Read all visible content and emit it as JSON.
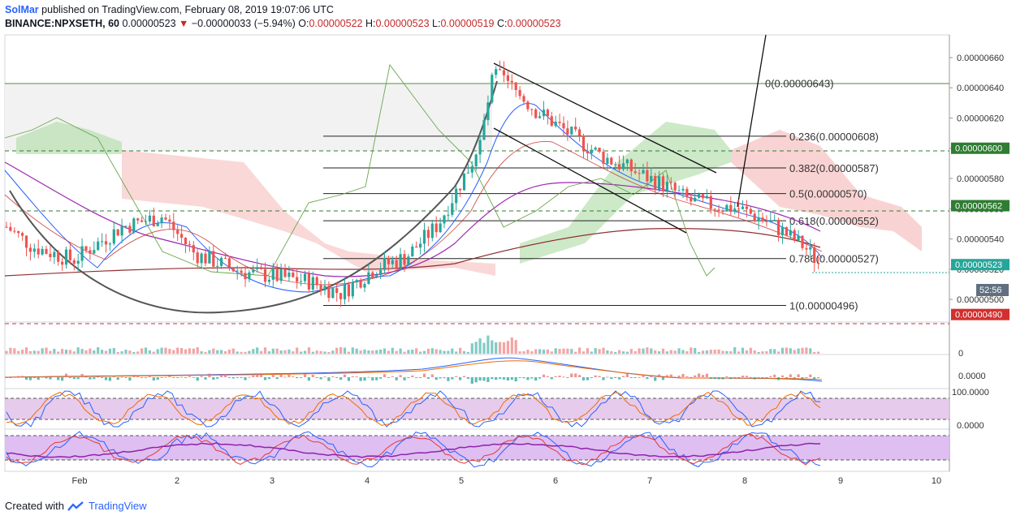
{
  "header": {
    "author": "SolMar",
    "published": "published on TradingView.com, February 08, 2019 19:07:06 UTC",
    "symbol": "BINANCE:NPXSETH, 60",
    "last": "0.00000523",
    "change_arrow": "▼",
    "change": "−0.00000033 (−5.94%)",
    "o_label": "O:",
    "o": "0.00000522",
    "h_label": "H:",
    "h": "0.00000523",
    "l_label": "L:",
    "l": "0.00000519",
    "c_label": "C:",
    "c": "0.00000523"
  },
  "footer": {
    "created_with": "Created with",
    "brand": "TradingView"
  },
  "colors": {
    "up": "#26a69a",
    "down": "#ef5350",
    "cloud_green": "#b8e0b0",
    "cloud_red": "#f8c8c8",
    "support_green": "#2e7d32",
    "resistance_red": "#d32f2f",
    "stoch_band": "#e1bee7"
  },
  "chart_data": {
    "type": "candlestick",
    "timeframe": "60",
    "x_ticks": [
      "Feb",
      "2",
      "3",
      "4",
      "5",
      "6",
      "7",
      "8",
      "9",
      "10"
    ],
    "price_ticks": [
      "0.00000660",
      "0.00000640",
      "0.00000620",
      "0.00000600",
      "0.00000580",
      "0.00000560",
      "0.00000540",
      "0.00000520",
      "0.00000500"
    ],
    "ylim": [
      4.85e-06,
      6.75e-06
    ],
    "price_labels": [
      {
        "text": "0.00000600",
        "price": 6e-06,
        "color": "#2e7d32"
      },
      {
        "text": "0.00000562",
        "price": 5.62e-06,
        "color": "#2e7d32"
      },
      {
        "text": "0.00000523",
        "price": 5.23e-06,
        "color": "#26a69a"
      },
      {
        "text": "0.00000490",
        "price": 4.9e-06,
        "color": "#d32f2f"
      }
    ],
    "countdown": "52:56",
    "fibonacci": [
      {
        "label": "0(0.00000643)",
        "price": 6.43e-06
      },
      {
        "label": "0.236(0.00000608)",
        "price": 6.08e-06
      },
      {
        "label": "0.382(0.00000587)",
        "price": 5.87e-06
      },
      {
        "label": "0.5(0.00000570)",
        "price": 5.7e-06
      },
      {
        "label": "0.618(0.00000552)",
        "price": 5.52e-06
      },
      {
        "label": "0.786(0.00000527)",
        "price": 5.27e-06
      },
      {
        "label": "1(0.00000496)",
        "price": 4.96e-06
      }
    ],
    "macd_tick": "0.0000",
    "stoch_ticks": [
      "100.0000",
      "0.0000"
    ],
    "volume_tick": "0"
  }
}
